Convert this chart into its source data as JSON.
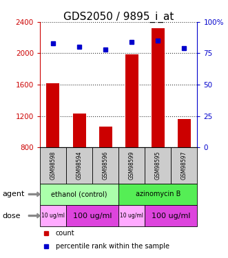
{
  "title": "GDS2050 / 9895_i_at",
  "samples": [
    "GSM98598",
    "GSM98594",
    "GSM98596",
    "GSM98599",
    "GSM98595",
    "GSM98597"
  ],
  "counts": [
    1620,
    1230,
    1060,
    1990,
    2320,
    1160
  ],
  "percentiles": [
    83,
    80,
    78,
    84,
    85,
    79
  ],
  "ylim_left": [
    800,
    2400
  ],
  "ylim_right": [
    0,
    100
  ],
  "yticks_left": [
    800,
    1200,
    1600,
    2000,
    2400
  ],
  "yticks_right": [
    0,
    25,
    50,
    75,
    100
  ],
  "bar_color": "#cc0000",
  "dot_color": "#0000cc",
  "agent_groups": [
    {
      "label": "ethanol (control)",
      "span": [
        0,
        3
      ],
      "color": "#aaffaa"
    },
    {
      "label": "azinomycin B",
      "span": [
        3,
        6
      ],
      "color": "#55ee55"
    }
  ],
  "dose_groups": [
    {
      "label": "10 ug/ml",
      "span": [
        0,
        1
      ],
      "color": "#ffaaff",
      "fontsize": 5.5
    },
    {
      "label": "100 ug/ml",
      "span": [
        1,
        3
      ],
      "color": "#dd44dd",
      "fontsize": 8
    },
    {
      "label": "10 ug/ml",
      "span": [
        3,
        4
      ],
      "color": "#ffaaff",
      "fontsize": 5.5
    },
    {
      "label": "100 ug/ml",
      "span": [
        4,
        6
      ],
      "color": "#dd44dd",
      "fontsize": 8
    }
  ],
  "sample_box_color": "#cccccc",
  "title_fontsize": 11,
  "left_axis_color": "#cc0000",
  "right_axis_color": "#0000cc",
  "grid_color": "#333333"
}
